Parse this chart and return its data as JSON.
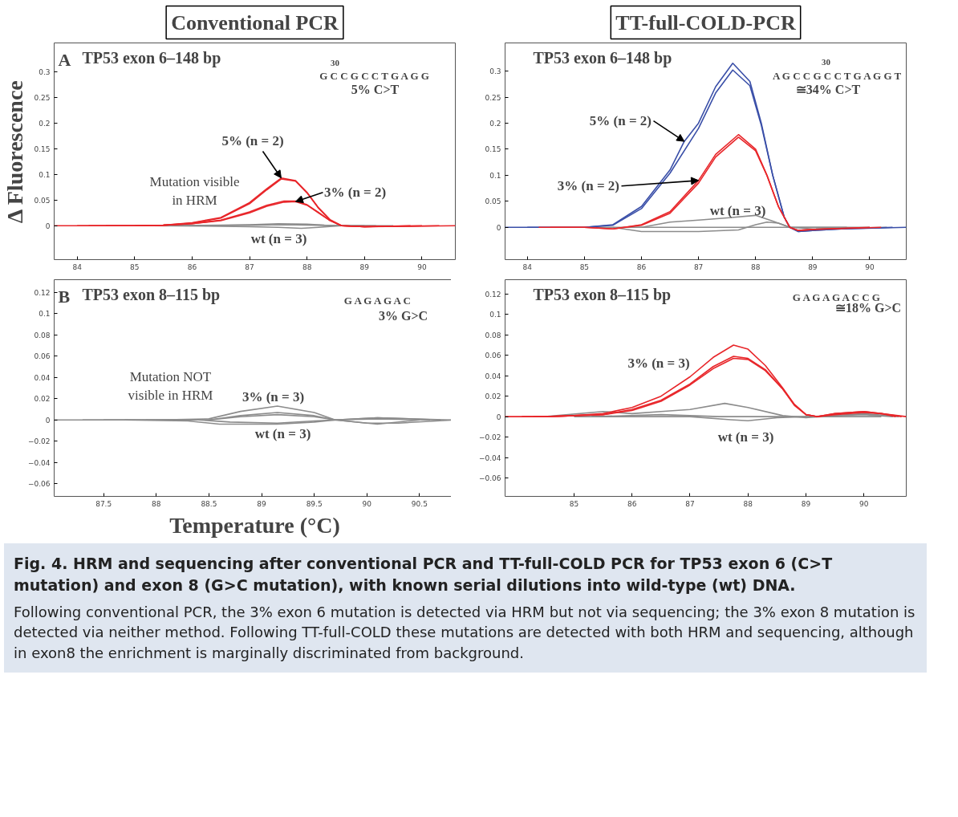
{
  "chart_data": [
    {
      "type": "line",
      "subtitle": "Conventional PCR",
      "title": "TP53 exon 6–148 bp",
      "ylabel": "Δ Fluorescence",
      "xlim": [
        83.6,
        90.58
      ],
      "ylim": [
        -0.066,
        0.356
      ],
      "xticks": [
        84,
        85,
        86,
        87,
        88,
        89,
        90
      ],
      "yticks": [
        0,
        0.05,
        0.1,
        0.15,
        0.2,
        0.25,
        0.3
      ],
      "series": [
        {
          "color": "#8c8c8c",
          "x": [
            85.0,
            86.5,
            87,
            87.5,
            88,
            88.3,
            88.6,
            89.5
          ],
          "values": [
            0,
            0.001,
            0.002,
            0.004,
            0.003,
            0.001,
            0,
            0
          ]
        },
        {
          "color": "#8c8c8c",
          "x": [
            85.3,
            86.5,
            87,
            87.5,
            87.9,
            88.2,
            88.6,
            89.2
          ],
          "values": [
            0,
            -0.001,
            -0.002,
            -0.003,
            -0.005,
            -0.003,
            0,
            0
          ]
        },
        {
          "color": "#8c8c8c",
          "x": [
            85.6,
            87,
            87.6,
            88.2,
            88.6,
            89.0
          ],
          "values": [
            0,
            0.001,
            0.002,
            0.001,
            0,
            0
          ]
        },
        {
          "color": "#e8262a",
          "x": [
            83.6,
            85,
            85.5,
            86,
            86.5,
            87,
            87.3,
            87.55,
            87.8,
            88,
            88.2,
            88.4,
            88.6,
            89,
            90.58
          ],
          "values": [
            0,
            0,
            0.001,
            0.006,
            0.016,
            0.045,
            0.072,
            0.093,
            0.088,
            0.065,
            0.035,
            0.012,
            0,
            -0.002,
            0
          ]
        },
        {
          "color": "#e8262a",
          "x": [
            84.0,
            85,
            85.5,
            86,
            86.5,
            87,
            87.3,
            87.55,
            87.8,
            88,
            88.2,
            88.4,
            88.6,
            89,
            90.3
          ],
          "values": [
            0,
            0,
            0.001,
            0.005,
            0.015,
            0.043,
            0.07,
            0.091,
            0.087,
            0.064,
            0.034,
            0.011,
            0,
            -0.002,
            0
          ]
        },
        {
          "color": "#e8262a",
          "x": [
            84.2,
            85,
            85.5,
            86,
            86.5,
            87,
            87.3,
            87.6,
            87.8,
            88,
            88.2,
            88.4,
            88.6,
            89,
            90.0
          ],
          "values": [
            0,
            0,
            0.001,
            0.004,
            0.01,
            0.025,
            0.038,
            0.046,
            0.047,
            0.04,
            0.025,
            0.01,
            0,
            -0.002,
            0
          ]
        },
        {
          "color": "#e8262a",
          "x": [
            84.5,
            85,
            85.5,
            86,
            86.5,
            87,
            87.3,
            87.6,
            87.8,
            88,
            88.2,
            88.4,
            88.6,
            89,
            89.8
          ],
          "values": [
            0,
            0,
            0.001,
            0.004,
            0.011,
            0.027,
            0.04,
            0.048,
            0.048,
            0.041,
            0.026,
            0.01,
            0,
            -0.002,
            0
          ]
        }
      ],
      "annotations": [
        "A",
        "30",
        "G C C G C C T G A G G",
        "5% C>T",
        {
          "text": "5% (n = 2)",
          "x": 87.55,
          "y": 0.093
        },
        "Mutation visible\nin HRM",
        {
          "text": "3% (n = 2)",
          "x": 87.8,
          "y": 0.047
        },
        "wt (n = 3)"
      ]
    },
    {
      "type": "line",
      "subtitle": "TT-full-COLD-PCR",
      "title": "TP53 exon 6–148 bp",
      "xlim": [
        83.61,
        90.64
      ],
      "ylim": [
        -0.062,
        0.354
      ],
      "xticks": [
        84,
        85,
        86,
        87,
        88,
        89,
        90
      ],
      "yticks": [
        0,
        0.05,
        0.1,
        0.15,
        0.2,
        0.25,
        0.3
      ],
      "series": [
        {
          "color": "#8c8c8c",
          "x": [
            85.2,
            86,
            86.5,
            87,
            87.5,
            88,
            88.3,
            88.6,
            90.0
          ],
          "values": [
            0,
            0,
            0.01,
            0.014,
            0.018,
            0.023,
            0.012,
            0,
            0
          ]
        },
        {
          "color": "#8c8c8c",
          "x": [
            85.5,
            86,
            87,
            87.7,
            88,
            88.2,
            88.4,
            88.6,
            89,
            90.3
          ],
          "values": [
            0,
            -0.008,
            -0.008,
            -0.005,
            0.005,
            0.01,
            0.008,
            0,
            -0.003,
            0
          ]
        },
        {
          "color": "#8c8c8c",
          "x": [
            85.8,
            87,
            88.5,
            89.6
          ],
          "values": [
            0,
            0,
            0,
            0
          ]
        },
        {
          "color": "#3a4fa8",
          "x": [
            83.61,
            85,
            85.5,
            86,
            86.5,
            86.75,
            87,
            87.3,
            87.6,
            87.9,
            88.1,
            88.3,
            88.5,
            88.6,
            88.75,
            89,
            89.5,
            90.64
          ],
          "values": [
            0,
            0,
            0.005,
            0.04,
            0.11,
            0.165,
            0.2,
            0.27,
            0.315,
            0.28,
            0.2,
            0.1,
            0.02,
            0,
            -0.008,
            -0.006,
            -0.003,
            0
          ]
        },
        {
          "color": "#3a4fa8",
          "x": [
            84.0,
            85,
            85.5,
            86,
            86.5,
            87,
            87.3,
            87.6,
            87.9,
            88.1,
            88.3,
            88.5,
            88.6,
            88.75,
            89,
            89.5,
            90.4
          ],
          "values": [
            0,
            0,
            0.004,
            0.036,
            0.104,
            0.19,
            0.258,
            0.302,
            0.272,
            0.196,
            0.1,
            0.02,
            0,
            -0.008,
            -0.006,
            -0.003,
            0
          ]
        },
        {
          "color": "#e8262a",
          "x": [
            84.2,
            85,
            85.5,
            86,
            86.5,
            87,
            87.3,
            87.7,
            88,
            88.2,
            88.4,
            88.6,
            88.75,
            89,
            90.2
          ],
          "values": [
            0,
            0,
            -0.003,
            0.005,
            0.03,
            0.09,
            0.14,
            0.178,
            0.15,
            0.1,
            0.04,
            0,
            -0.006,
            -0.004,
            0
          ]
        },
        {
          "color": "#e8262a",
          "x": [
            84.4,
            85,
            85.5,
            86,
            86.5,
            87,
            87.3,
            87.7,
            88,
            88.2,
            88.4,
            88.6,
            88.75,
            89,
            90.0
          ],
          "values": [
            0,
            0,
            -0.003,
            0.004,
            0.027,
            0.085,
            0.135,
            0.173,
            0.147,
            0.099,
            0.04,
            0,
            -0.006,
            -0.004,
            0
          ]
        }
      ],
      "annotations": [
        "30",
        "A G C C G C C T G A G G T",
        "≅34% C>T",
        {
          "text": "5% (n = 2)",
          "x": 86.75,
          "y": 0.165
        },
        {
          "text": "3% (n = 2)",
          "x": 87,
          "y": 0.09
        },
        "wt (n = 3)"
      ]
    },
    {
      "type": "line",
      "title": "TP53 exon 8–115 bp",
      "xlabel": "Temperature (°C)",
      "xlim": [
        87.03,
        90.84
      ],
      "ylim": [
        -0.072,
        0.132
      ],
      "xticks": [
        87.5,
        88,
        88.5,
        89,
        89.5,
        90,
        90.5
      ],
      "yticks": [
        -0.06,
        -0.04,
        -0.02,
        0,
        0.02,
        0.04,
        0.06,
        0.08,
        0.1,
        0.12
      ],
      "series": [
        {
          "color": "#8c8c8c",
          "x": [
            87.03,
            88,
            88.5,
            88.8,
            89.15,
            89.5,
            89.7,
            90,
            90.3,
            90.84
          ],
          "values": [
            0,
            0,
            0.001,
            0.008,
            0.013,
            0.007,
            0,
            -0.003,
            -0.003,
            0
          ]
        },
        {
          "color": "#8c8c8c",
          "x": [
            87.3,
            88.5,
            88.8,
            89.15,
            89.5,
            89.7,
            90.1,
            90.7
          ],
          "values": [
            0,
            0,
            0.004,
            0.007,
            0.004,
            0,
            0.002,
            0
          ]
        },
        {
          "color": "#8c8c8c",
          "x": [
            87.5,
            88.5,
            88.8,
            89.15,
            89.5,
            89.7,
            90.1,
            90.6
          ],
          "values": [
            0,
            0,
            0.003,
            0.005,
            0.003,
            0,
            0.001,
            0
          ]
        },
        {
          "color": "#8c8c8c",
          "x": [
            87.7,
            88.3,
            88.6,
            89.15,
            89.5,
            89.7,
            90.1,
            90.4,
            90.8
          ],
          "values": [
            0,
            -0.001,
            -0.004,
            -0.004,
            -0.002,
            0,
            0.002,
            0.001,
            0
          ]
        },
        {
          "color": "#8c8c8c",
          "x": [
            87.9,
            88.4,
            88.7,
            89.15,
            89.5,
            89.7,
            90.1,
            90.5
          ],
          "values": [
            0,
            0,
            -0.002,
            -0.003,
            -0.001,
            0,
            -0.004,
            0
          ]
        }
      ],
      "annotations": [
        "B",
        "G A G A G A C",
        "3% G>C",
        "Mutation NOT\nvisible in HRM",
        "3% (n = 3)",
        "wt (n = 3)"
      ]
    },
    {
      "type": "line",
      "title": "TP53 exon 8–115 bp",
      "xlim": [
        83.81,
        90.73
      ],
      "ylim": [
        -0.078,
        0.134
      ],
      "xticks": [
        85,
        86,
        87,
        88,
        89,
        90
      ],
      "yticks": [
        -0.06,
        -0.04,
        -0.02,
        0,
        0.02,
        0.04,
        0.06,
        0.08,
        0.1,
        0.12
      ],
      "series": [
        {
          "color": "#8c8c8c",
          "x": [
            84.5,
            85.5,
            86,
            86.5,
            87,
            87.6,
            88,
            88.6,
            89,
            90,
            90.6
          ],
          "values": [
            0,
            0.005,
            0.003,
            0.005,
            0.007,
            0.013,
            0.009,
            0.001,
            -0.001,
            0.003,
            0
          ]
        },
        {
          "color": "#8c8c8c",
          "x": [
            85.0,
            87,
            87.7,
            88,
            88.5,
            89,
            90,
            90.5
          ],
          "values": [
            0,
            0,
            -0.003,
            -0.004,
            -0.001,
            0,
            0.002,
            0
          ]
        },
        {
          "color": "#8c8c8c",
          "x": [
            85.3,
            86.5,
            87.5,
            89,
            90.3
          ],
          "values": [
            0,
            0.002,
            0,
            0,
            0
          ]
        },
        {
          "color": "#e8262a",
          "x": [
            83.81,
            84.5,
            85,
            85.5,
            86,
            86.5,
            87,
            87.4,
            87.75,
            88,
            88.3,
            88.6,
            88.8,
            89,
            89.2,
            89.5,
            90,
            90.3,
            90.73
          ],
          "values": [
            0,
            0,
            0.001,
            0.003,
            0.009,
            0.02,
            0.039,
            0.058,
            0.07,
            0.066,
            0.05,
            0.028,
            0.012,
            0.002,
            0,
            0.003,
            0.005,
            0.003,
            0
          ]
        },
        {
          "color": "#e8262a",
          "x": [
            84.1,
            84.5,
            85,
            85.5,
            86,
            86.5,
            87,
            87.4,
            87.75,
            88,
            88.3,
            88.6,
            88.8,
            89,
            89.2,
            89.5,
            90,
            90.3,
            90.65
          ],
          "values": [
            0,
            0,
            0.001,
            0.002,
            0.007,
            0.016,
            0.032,
            0.049,
            0.059,
            0.057,
            0.046,
            0.027,
            0.012,
            0.002,
            0,
            0.003,
            0.005,
            0.003,
            0
          ]
        },
        {
          "color": "#e8262a",
          "x": [
            84.3,
            84.6,
            85,
            85.5,
            86,
            86.5,
            87,
            87.4,
            87.75,
            88,
            88.3,
            88.6,
            88.8,
            89,
            89.2,
            89.5,
            90,
            90.3,
            90.55
          ],
          "values": [
            0,
            0,
            0.001,
            0.002,
            0.006,
            0.015,
            0.031,
            0.047,
            0.057,
            0.056,
            0.045,
            0.027,
            0.011,
            0.002,
            0,
            0.002,
            0.004,
            0.003,
            0
          ]
        }
      ],
      "annotations": [
        "G A G A G A C C G",
        "≅18% G>C",
        "3% (n = 3)",
        "wt (n = 3)",
        "Fig. 4. HRM and sequencing after conventional PCR and TT-full-COLD PCR for TP53 exon 6 (C>T mutation) and exon 8 (G>C mutation), with known serial dilutions into wild-type (wt) DNA.",
        "Following conventional PCR, the 3% exon 6 mutation is detected via HRM but not via sequencing; the 3% exon 8 mutation is detected via neither method. Following TT-full-COLD these mutations are detected with both HRM and sequencing, although in exon8 the enrichment is marginally discriminated from background."
      ]
    }
  ]
}
